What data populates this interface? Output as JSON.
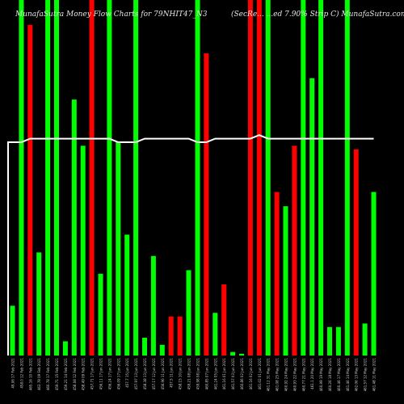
{
  "title_left": "MunafaSutra Money Flow Charts for 79NHIT47_N3",
  "title_right": "(SecRe... ...ed 7.90% Strip C) MunafaSutra.com",
  "colors": {
    "background": "#000000",
    "up": "#00ff00",
    "down": "#ff0000",
    "line": "#ffffff",
    "tick": "#d0d0d0"
  },
  "chart_data": {
    "type": "bar",
    "title": "MunafaSutra Money Flow Charts for 79NHIT47_N3",
    "subtitle": "(SecRe... ...ed 7.90% Strip C) MunafaSutra.com",
    "ylim": [
      0,
      100
    ],
    "categories": [
      "49.06 17 Feb 2021",
      "458.0 12 Feb 2021",
      "465.16 10 Feb 2021",
      "463.78 09 Feb 2021",
      "460.78 17 Feb 2021",
      "459.71 15 Feb 2021",
      "459.21 14 Feb 2021",
      "458.08 12 Feb 2021",
      "458.49 09 Feb 2021",
      "457.71 17 Jun 2021",
      "456.11 17 Jun 2021",
      "456.24 17 Jun 2021",
      "456.09 17 Jun 2021",
      "457.7 15 Jun 2021",
      "457.97 13 Jun 2021",
      "458.38 13 Jun 2021",
      "457.17 12 Jun 2021",
      "456.96 11 Jun 2021",
      "457.5 11 Jun 2021",
      "458.15 10 Jun 2021",
      "459.21 08 Jun 2021",
      "459.98 08 Jun 2021",
      "460.85 07 Jun 2021",
      "461.24 05 Jun 2021",
      "461.16 01 Jun 2021",
      "461.57 03 Jun 2021",
      "460.86 02 Jun 2021",
      "461.16 02 Jun 2021",
      "461.02 01 Jun 2021",
      "461.12 31 May 2021",
      "461.08 25 May 2021",
      "460.92 24 May 2021",
      "460.93 22 May 2021",
      "460.77 21 May 2021",
      "461.1 20 May 2021",
      "460.99 19 May 2021",
      "460.26 18 May 2021",
      "460.46 17 May 2021",
      "461.46 14 May 2021",
      "462.06 13 May 2021",
      "461.57 12 May 2021",
      "461.48 11 May 2021"
    ],
    "series": [
      {
        "values": [
          14,
          100,
          93,
          29,
          100,
          100,
          4,
          72,
          59,
          100,
          23,
          100,
          60,
          34,
          100,
          5,
          28,
          3,
          11,
          11,
          24,
          100,
          85,
          12,
          20,
          1,
          0.5,
          100,
          100,
          100,
          46,
          42,
          59,
          100,
          78,
          100,
          8,
          8,
          100,
          58,
          9,
          46
        ],
        "colors": [
          "g",
          "g",
          "r",
          "g",
          "g",
          "g",
          "g",
          "g",
          "g",
          "r",
          "g",
          "g",
          "g",
          "g",
          "g",
          "g",
          "g",
          "g",
          "r",
          "r",
          "g",
          "g",
          "r",
          "g",
          "r",
          "g",
          "g",
          "r",
          "r",
          "g",
          "r",
          "g",
          "r",
          "g",
          "g",
          "g",
          "g",
          "g",
          "g",
          "r",
          "g",
          "g"
        ]
      }
    ],
    "line": [
      60,
      60,
      61,
      61,
      61,
      61,
      61,
      61,
      61,
      61,
      61,
      61,
      60,
      60,
      60,
      61,
      61,
      61,
      61,
      61,
      61,
      60,
      60,
      61,
      61,
      61,
      61,
      61,
      62,
      61,
      61,
      61,
      61,
      61,
      61,
      61,
      61,
      61,
      61,
      61,
      61,
      61
    ],
    "line_start": 0
  }
}
